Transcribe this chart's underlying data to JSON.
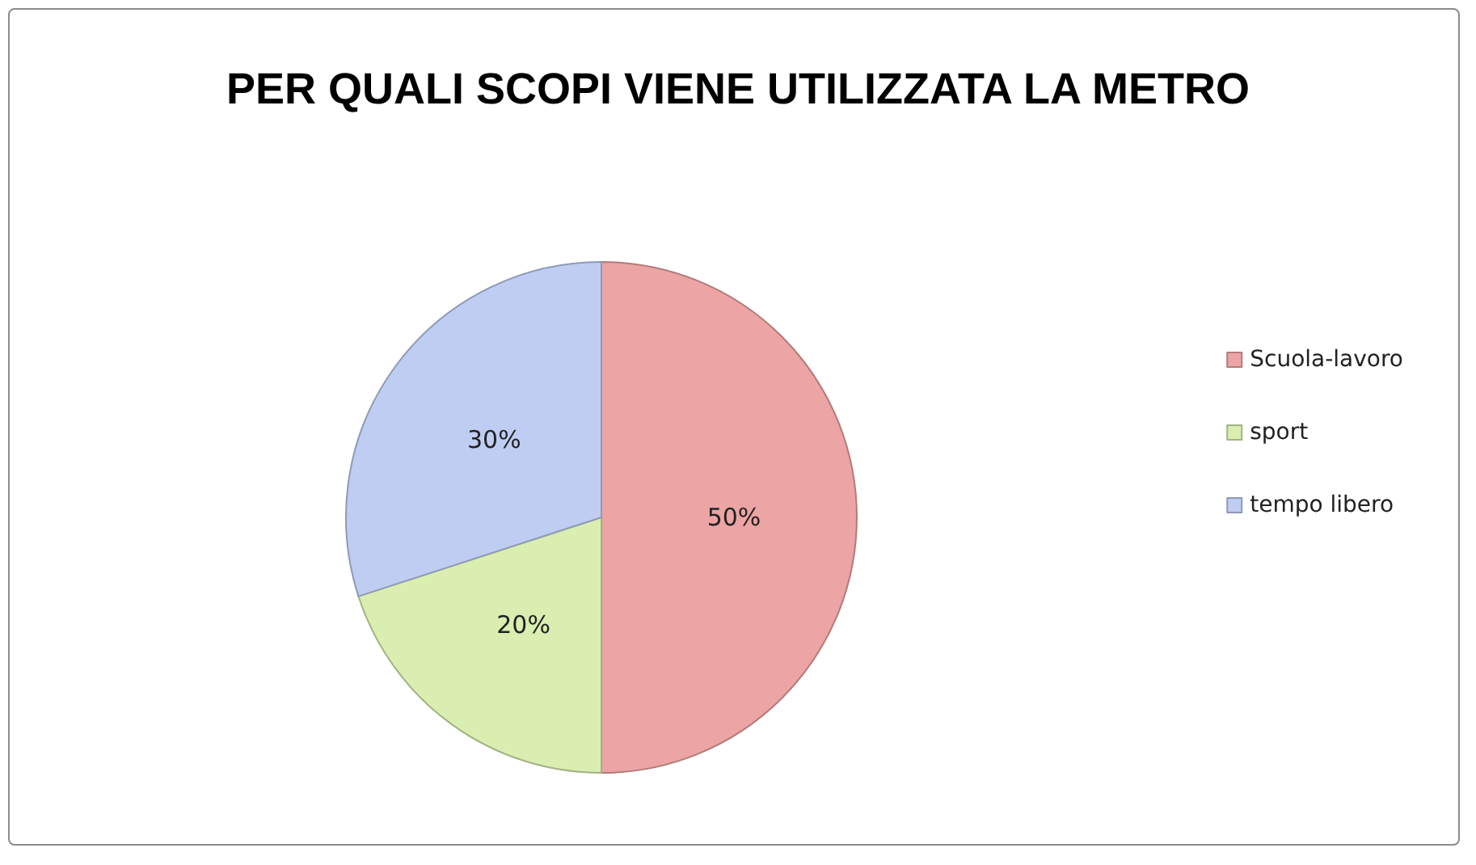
{
  "chart_data": {
    "type": "pie",
    "title": "PER QUALI SCOPI VIENE UTILIZZATA LA METRO",
    "categories": [
      "Scuola-lavoro",
      "sport",
      "tempo libero"
    ],
    "values": [
      50,
      20,
      30
    ],
    "value_labels": [
      "50%",
      "20%",
      "30%"
    ],
    "colors": [
      "#eca4a4",
      "#d9eeb0",
      "#bfcdf2"
    ],
    "legend": "right"
  }
}
